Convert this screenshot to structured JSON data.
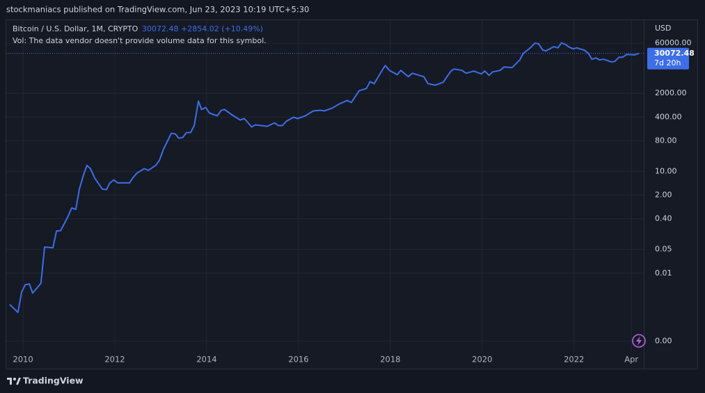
{
  "page": {
    "publisher": "stockmaniacs published on TradingView.com, Jun 23, 2023 10:19 UTC+5:30",
    "footer": "TradingView"
  },
  "chart_data": {
    "type": "line",
    "title": "Bitcoin / U.S. Dollar, 1M, CRYPTO",
    "price": "30072.48",
    "change": "+2854.02 (+10.49%)",
    "note": "Vol: The data vendor doesn't provide volume data for this symbol.",
    "countdown": "7d 20h",
    "y_unit": "USD",
    "log_scale": true,
    "grid": true,
    "color": "#3d6ee8",
    "x": [
      2009.71,
      2009.89,
      2009.97,
      2010.05,
      2010.14,
      2010.21,
      2010.39,
      2010.47,
      2010.65,
      2010.73,
      2010.82,
      2010.98,
      2011.06,
      2011.15,
      2011.23,
      2011.32,
      2011.39,
      2011.47,
      2011.56,
      2011.73,
      2011.82,
      2011.89,
      2011.98,
      2012.06,
      2012.32,
      2012.39,
      2012.48,
      2012.64,
      2012.73,
      2012.89,
      2012.97,
      2013.06,
      2013.23,
      2013.32,
      2013.39,
      2013.48,
      2013.56,
      2013.65,
      2013.73,
      2013.82,
      2013.89,
      2013.98,
      2014.06,
      2014.23,
      2014.32,
      2014.39,
      2014.56,
      2014.73,
      2014.82,
      2014.98,
      2015.06,
      2015.32,
      2015.48,
      2015.56,
      2015.65,
      2015.73,
      2015.89,
      2015.98,
      2016.15,
      2016.32,
      2016.48,
      2016.56,
      2016.73,
      2016.89,
      2017.06,
      2017.15,
      2017.32,
      2017.48,
      2017.56,
      2017.65,
      2017.82,
      2017.89,
      2017.98,
      2018.15,
      2018.23,
      2018.39,
      2018.48,
      2018.73,
      2018.82,
      2018.98,
      2019.15,
      2019.32,
      2019.39,
      2019.56,
      2019.65,
      2019.82,
      2019.98,
      2020.06,
      2020.15,
      2020.23,
      2020.39,
      2020.48,
      2020.65,
      2020.82,
      2020.89,
      2021.06,
      2021.15,
      2021.23,
      2021.32,
      2021.39,
      2021.56,
      2021.65,
      2021.73,
      2021.82,
      2021.89,
      2021.98,
      2022.06,
      2022.23,
      2022.32,
      2022.39,
      2022.48,
      2022.56,
      2022.65,
      2022.82,
      2022.89,
      2022.98,
      2023.06,
      2023.15,
      2023.32,
      2023.41
    ],
    "values": [
      0.0012,
      0.0007,
      0.0028,
      0.0046,
      0.0048,
      0.0026,
      0.005,
      0.059,
      0.056,
      0.175,
      0.18,
      0.47,
      0.84,
      0.76,
      3.1,
      8.1,
      15,
      12,
      6.4,
      3.0,
      2.9,
      4.6,
      5.6,
      4.6,
      4.6,
      6.4,
      8.9,
      12,
      10.8,
      15,
      21,
      45,
      133,
      127,
      95,
      100,
      139,
      139,
      224,
      1175,
      665,
      767,
      525,
      435,
      635,
      665,
      456,
      327,
      360,
      204,
      235,
      213,
      270,
      224,
      224,
      297,
      395,
      360,
      435,
      605,
      635,
      605,
      731,
      973,
      1233,
      1069,
      2393,
      2761,
      4426,
      3846,
      9460,
      13180,
      9460,
      7110,
      9460,
      6170,
      7820,
      6170,
      3846,
      3490,
      4230,
      9020,
      10400,
      9460,
      7820,
      9020,
      7460,
      9020,
      6780,
      8590,
      9460,
      11970,
      11430,
      19230,
      29440,
      45180,
      60000,
      57800,
      37330,
      35650,
      47300,
      43800,
      61400,
      54600,
      46300,
      41000,
      43800,
      37300,
      29400,
      20200,
      22200,
      19200,
      20200,
      16700,
      17500,
      23100,
      23100,
      28100,
      27100,
      30072.48
    ],
    "xlim": [
      2009.62,
      2023.52
    ],
    "xticks": [
      2010,
      2012,
      2014,
      2016,
      2018,
      2020,
      2022,
      {
        "value": 2023.25,
        "label": "Apr"
      }
    ],
    "ylim": [
      5e-05,
      300000
    ],
    "yticks": [
      {
        "value": 60000,
        "label": "60000.00"
      },
      {
        "value": 2000,
        "label": "2000.00"
      },
      {
        "value": 400,
        "label": "400.00"
      },
      {
        "value": 80,
        "label": "80.00"
      },
      {
        "value": 10,
        "label": "10.00"
      },
      {
        "value": 2,
        "label": "2.00"
      },
      {
        "value": 0.4,
        "label": "0.40"
      },
      {
        "value": 0.05,
        "label": "0.05"
      },
      {
        "value": 0.01,
        "label": "0.01"
      },
      {
        "value": 0.0001,
        "label": "0.00"
      }
    ]
  }
}
